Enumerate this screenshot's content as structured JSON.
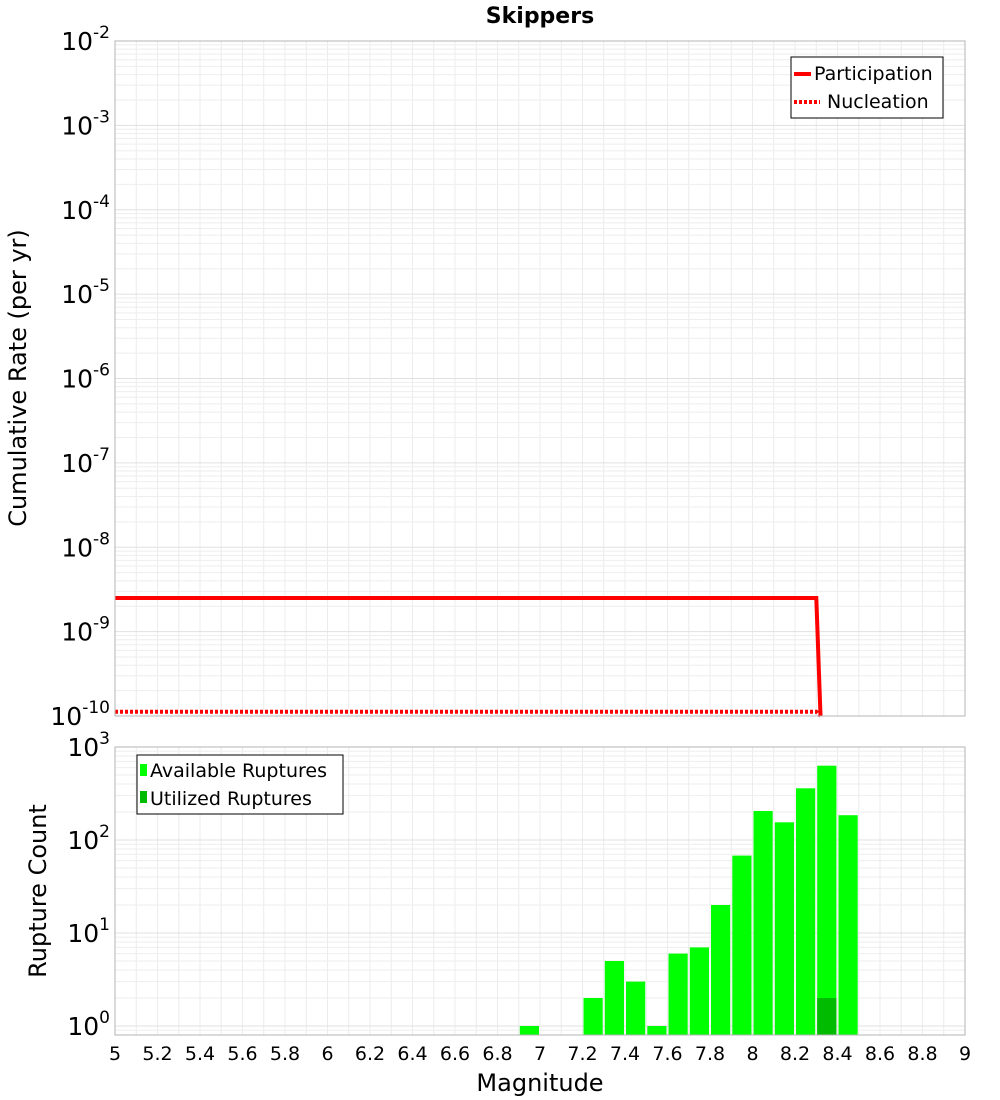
{
  "chart_data": [
    {
      "type": "line",
      "title": "Skippers",
      "xlabel": "",
      "ylabel": "Cumulative Rate (per yr)",
      "xlim": [
        5,
        9
      ],
      "ylim": [
        1e-10,
        0.01
      ],
      "y_scale": "log",
      "grid": true,
      "legend_position": "top-right",
      "series": [
        {
          "name": "Participation",
          "style": "solid",
          "color": "#ff0000",
          "x": [
            5.0,
            8.3,
            8.32
          ],
          "y": [
            2.5e-09,
            2.5e-09,
            1e-10
          ]
        },
        {
          "name": "Nucleation",
          "style": "dotted",
          "color": "#ff0000",
          "x": [
            5.0,
            8.3,
            8.32
          ],
          "y": [
            1.12e-10,
            1.12e-10,
            1e-10
          ]
        }
      ],
      "yticks": [
        {
          "base": "10",
          "exp": "-2"
        },
        {
          "base": "10",
          "exp": "-3"
        },
        {
          "base": "10",
          "exp": "-4"
        },
        {
          "base": "10",
          "exp": "-5"
        },
        {
          "base": "10",
          "exp": "-6"
        },
        {
          "base": "10",
          "exp": "-7"
        },
        {
          "base": "10",
          "exp": "-8"
        },
        {
          "base": "10",
          "exp": "-9"
        },
        {
          "base": "10",
          "exp": "-10"
        }
      ]
    },
    {
      "type": "bar",
      "title": "",
      "xlabel": "Magnitude",
      "ylabel": "Rupture Count",
      "xlim": [
        5,
        9
      ],
      "ylim": [
        0.8,
        1000
      ],
      "y_scale": "log",
      "grid": true,
      "legend_position": "top-left",
      "series": [
        {
          "name": "Available Ruptures",
          "color": "#00ff00",
          "x": [
            6.95,
            7.25,
            7.35,
            7.45,
            7.55,
            7.65,
            7.75,
            7.85,
            7.95,
            8.05,
            8.15,
            8.25,
            8.35,
            8.45
          ],
          "values": [
            1,
            2,
            5,
            3,
            1,
            6,
            7,
            20,
            68,
            205,
            155,
            360,
            630,
            185
          ]
        },
        {
          "name": "Utilized Ruptures",
          "color": "#00bb00",
          "x": [
            8.35
          ],
          "values": [
            2
          ]
        }
      ],
      "xticks": [
        "5",
        "5.2",
        "5.4",
        "5.6",
        "5.8",
        "6",
        "6.2",
        "6.4",
        "6.6",
        "6.8",
        "7",
        "7.2",
        "7.4",
        "7.6",
        "7.8",
        "8",
        "8.2",
        "8.4",
        "8.6",
        "8.8",
        "9"
      ],
      "yticks": [
        {
          "base": "10",
          "exp": "3"
        },
        {
          "base": "10",
          "exp": "2"
        },
        {
          "base": "10",
          "exp": "1"
        },
        {
          "base": "10",
          "exp": "0"
        }
      ]
    }
  ]
}
